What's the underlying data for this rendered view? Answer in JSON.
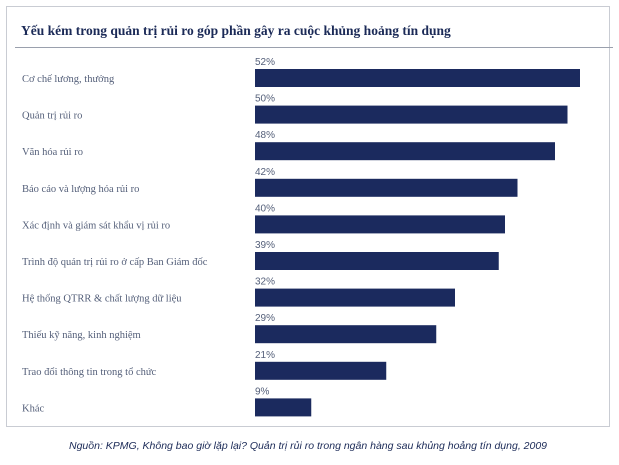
{
  "chart_data": {
    "type": "bar",
    "orientation": "horizontal",
    "title": "Yếu kém trong quản trị rủi ro góp phần gây ra cuộc khủng hoảng tín dụng",
    "categories": [
      "Cơ chế lương, thưởng",
      "Quản trị rủi ro",
      "Văn hóa rủi ro",
      "Báo cáo và lượng hóa rủi ro",
      "Xác định và giám sát khẩu vị rủi ro",
      "Trình độ quản trị rủi ro ở cấp Ban Giám đốc",
      "Hệ thống QTRR & chất lượng dữ liệu",
      "Thiếu kỹ năng, kinh nghiệm",
      "Trao đổi thông tin trong tổ chức",
      "Khác"
    ],
    "values": [
      52,
      50,
      48,
      42,
      40,
      39,
      32,
      29,
      21,
      9
    ],
    "value_labels": [
      "52%",
      "50%",
      "48%",
      "42%",
      "40%",
      "39%",
      "32%",
      "29%",
      "21%",
      "9%"
    ],
    "unit": "%",
    "bar_color": "#1b2a5e",
    "label_color": "#55607a",
    "title_color": "#1b2a57",
    "grid": false,
    "legend": "none"
  },
  "source": "Nguồn: KPMG, Không bao giờ lặp lại? Quản trị rủi ro trong ngân hàng sau khủng hoảng tín dụng, 2009"
}
